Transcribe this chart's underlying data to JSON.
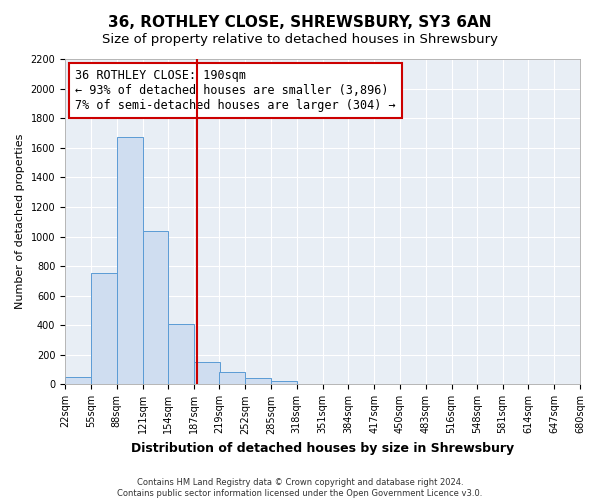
{
  "title": "36, ROTHLEY CLOSE, SHREWSBURY, SY3 6AN",
  "subtitle": "Size of property relative to detached houses in Shrewsbury",
  "xlabel": "Distribution of detached houses by size in Shrewsbury",
  "ylabel": "Number of detached properties",
  "bin_edges": [
    22,
    55,
    88,
    121,
    154,
    187,
    219,
    252,
    285,
    318,
    351,
    384,
    417,
    450,
    483,
    516,
    548,
    581,
    614,
    647,
    680
  ],
  "bar_heights": [
    50,
    750,
    1670,
    1040,
    410,
    150,
    85,
    45,
    25,
    0,
    0,
    0,
    0,
    0,
    0,
    0,
    0,
    0,
    0,
    0
  ],
  "property_line_x": 190,
  "bar_color_fill": "#cfddf0",
  "bar_color_edge": "#5b9bd5",
  "vline_color": "#cc0000",
  "annot_box_color": "#cc0000",
  "ylim": [
    0,
    2200
  ],
  "xlim": [
    22,
    680
  ],
  "annotation_line1": "36 ROTHLEY CLOSE: 190sqm",
  "annotation_line2": "← 93% of detached houses are smaller (3,896)",
  "annotation_line3": "7% of semi-detached houses are larger (304) →",
  "tick_labels": [
    "22sqm",
    "55sqm",
    "88sqm",
    "121sqm",
    "154sqm",
    "187sqm",
    "219sqm",
    "252sqm",
    "285sqm",
    "318sqm",
    "351sqm",
    "384sqm",
    "417sqm",
    "450sqm",
    "483sqm",
    "516sqm",
    "548sqm",
    "581sqm",
    "614sqm",
    "647sqm",
    "680sqm"
  ],
  "footer_line1": "Contains HM Land Registry data © Crown copyright and database right 2024.",
  "footer_line2": "Contains public sector information licensed under the Open Government Licence v3.0.",
  "bg_color": "#e8eef5",
  "grid_color": "#ffffff",
  "title_fontsize": 11,
  "subtitle_fontsize": 9.5,
  "ylabel_fontsize": 8,
  "xlabel_fontsize": 9,
  "tick_fontsize": 7,
  "annot_fontsize": 8.5,
  "footer_fontsize": 6
}
